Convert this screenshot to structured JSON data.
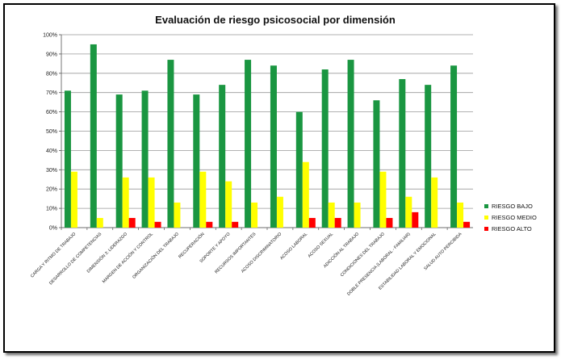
{
  "chart_data": {
    "type": "bar",
    "title": "Evaluación de riesgo psicosocial por dimensión",
    "xlabel": "",
    "ylabel": "",
    "ylim": [
      0,
      100
    ],
    "yticks": [
      "0%",
      "10%",
      "20%",
      "30%",
      "40%",
      "50%",
      "60%",
      "70%",
      "80%",
      "90%",
      "100%"
    ],
    "grid": true,
    "legend_position": "right",
    "categories": [
      "CARGA Y RITMO DE TRABAJO",
      "DESARROLLO DE COMPETENCIAS",
      "DIMENSIÓN 3: LIDERAZGO",
      "MARGEN DE ACCIÓN Y CONTROL",
      "ORGANIZACIÓN DEL TRABAJO",
      "RECUPERACIÓN",
      "SOPORTE Y APOYO",
      "RECURSOS IMPORTANTES",
      "ACOSO DISCRIMINATORIO",
      "ACOSO LABORAL",
      "ACOSO SEXUAL",
      "ADICCIÓN AL TRABAJO",
      "CONDICIONES DEL TRABAJO",
      "DOBLE PRESENCIA (LABORAL - FAMILIAR)",
      "ESTABILIDAD LABORAL Y EMOCIONAL",
      "SALUD AUTO PERCIBIDA"
    ],
    "series": [
      {
        "name": "RIESGO BAJO",
        "color": "#1a9641",
        "values": [
          71,
          95,
          69,
          71,
          87,
          69,
          74,
          87,
          84,
          60,
          82,
          87,
          66,
          77,
          74,
          84
        ]
      },
      {
        "name": "RIESGO MEDIO",
        "color": "#ffff00",
        "values": [
          29,
          5,
          26,
          26,
          13,
          29,
          24,
          13,
          16,
          34,
          13,
          13,
          29,
          16,
          26,
          13
        ]
      },
      {
        "name": "RIESGO ALTO",
        "color": "#ff0000",
        "values": [
          0,
          0,
          5,
          3,
          0,
          3,
          3,
          0,
          0,
          5,
          5,
          0,
          5,
          8,
          0,
          3
        ]
      }
    ]
  }
}
